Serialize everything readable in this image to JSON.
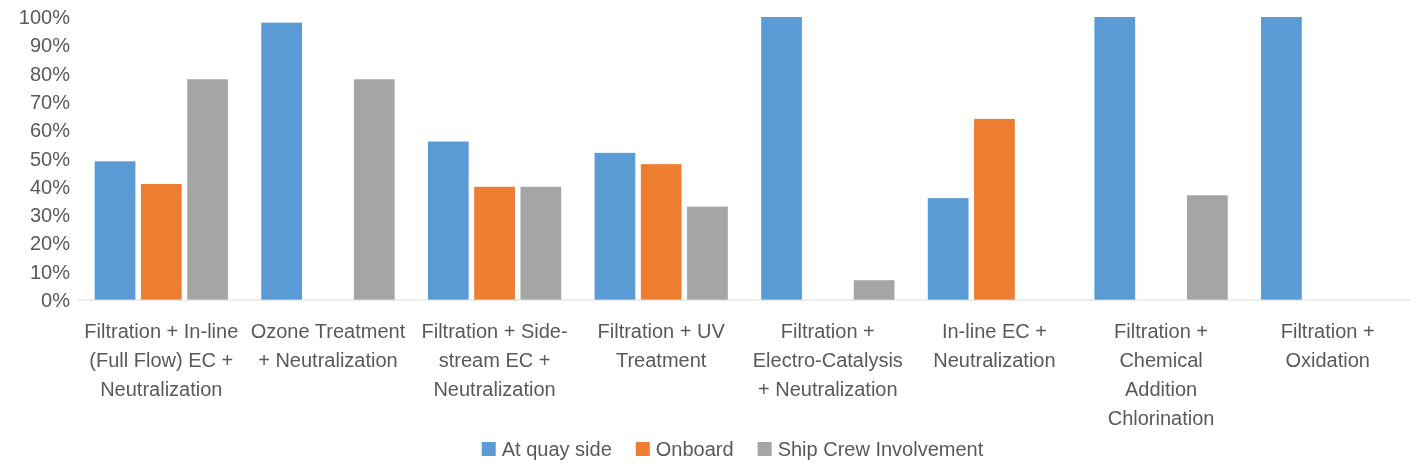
{
  "chart_data": {
    "type": "bar",
    "categories": [
      "Filtration + In-line (Full Flow) EC + Neutralization",
      "Ozone Treatment + Neutralization",
      "Filtration + Side-stream EC + Neutralization",
      "Filtration + UV Treatment",
      "Filtration + Electro-Catalysis + Neutralization",
      "In-line EC + Neutralization",
      "Filtration + Chemical Addition Chlorination",
      "Filtration + Oxidation"
    ],
    "series": [
      {
        "name": "At quay side",
        "color": "#5b9bd5",
        "values": [
          49,
          98,
          56,
          52,
          100,
          36,
          100,
          100
        ]
      },
      {
        "name": "Onboard",
        "color": "#ed7d31",
        "values": [
          41,
          0,
          40,
          48,
          0,
          64,
          0,
          0
        ]
      },
      {
        "name": "Ship Crew Involvement",
        "color": "#a5a5a5",
        "values": [
          78,
          78,
          40,
          33,
          7,
          0,
          37,
          0
        ]
      }
    ],
    "ylim": [
      0,
      100
    ],
    "yticks": [
      {
        "value": 0,
        "label": "0%"
      },
      {
        "value": 10,
        "label": "10%"
      },
      {
        "value": 20,
        "label": "20%"
      },
      {
        "value": 30,
        "label": "30%"
      },
      {
        "value": 40,
        "label": "40%"
      },
      {
        "value": 50,
        "label": "50%"
      },
      {
        "value": 60,
        "label": "60%"
      },
      {
        "value": 70,
        "label": "70%"
      },
      {
        "value": 80,
        "label": "80%"
      },
      {
        "value": 90,
        "label": "90%"
      },
      {
        "value": 100,
        "label": "100%"
      }
    ],
    "legend": "bottom",
    "grid": false
  }
}
